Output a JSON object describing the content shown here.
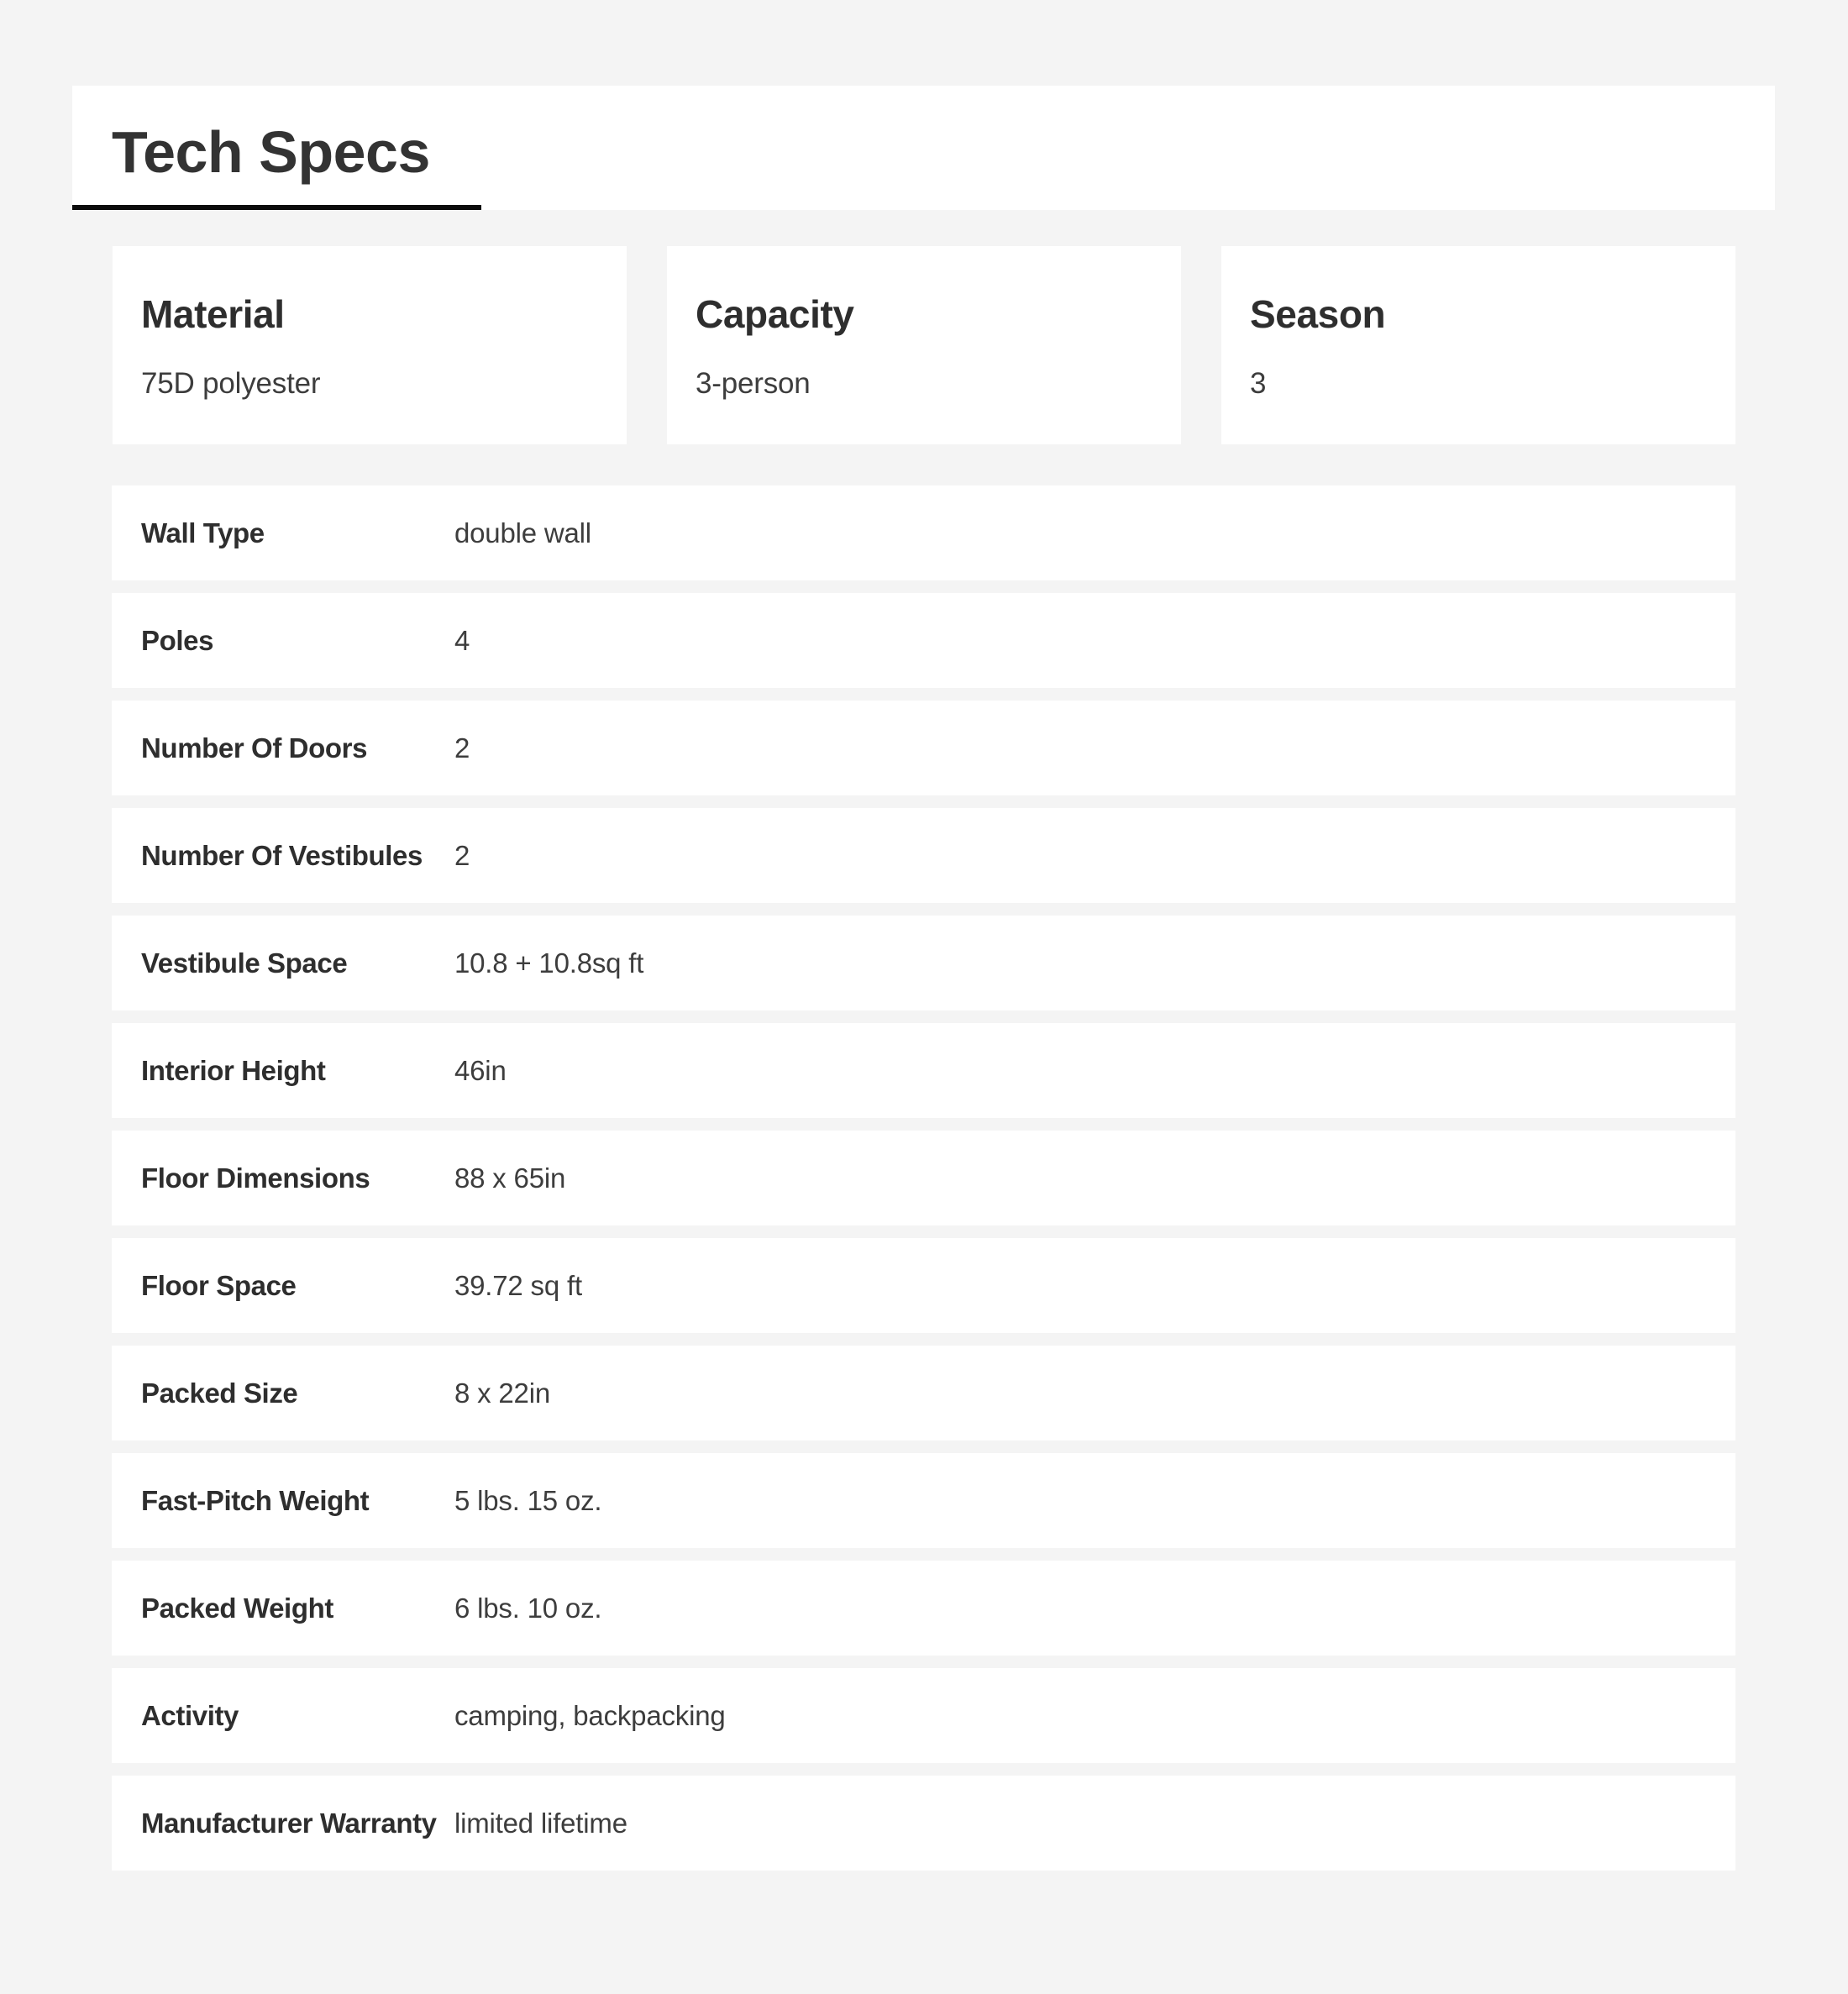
{
  "header": {
    "title": "Tech Specs"
  },
  "highlight_cards": [
    {
      "label": "Material",
      "value": "75D polyester"
    },
    {
      "label": "Capacity",
      "value": "3-person"
    },
    {
      "label": "Season",
      "value": "3"
    }
  ],
  "spec_rows": [
    {
      "label": "Wall Type",
      "value": "double wall"
    },
    {
      "label": "Poles",
      "value": "4"
    },
    {
      "label": "Number Of Doors",
      "value": "2"
    },
    {
      "label": "Number Of Vestibules",
      "value": "2"
    },
    {
      "label": "Vestibule Space",
      "value": "10.8 + 10.8sq ft"
    },
    {
      "label": "Interior Height",
      "value": "46in"
    },
    {
      "label": "Floor Dimensions",
      "value": "88 x 65in"
    },
    {
      "label": "Floor Space",
      "value": "39.72 sq ft"
    },
    {
      "label": "Packed Size",
      "value": "8 x 22in"
    },
    {
      "label": "Fast-Pitch Weight",
      "value": "5 lbs. 15 oz."
    },
    {
      "label": "Packed Weight",
      "value": "6 lbs. 10 oz."
    },
    {
      "label": "Activity",
      "value": "camping, backpacking"
    },
    {
      "label": "Manufacturer Warranty",
      "value": "limited lifetime"
    }
  ],
  "colors": {
    "page_background": "#f4f4f4",
    "panel_background": "#ffffff",
    "heading_text": "#2e2e2e",
    "value_text": "#3d3d3d",
    "accent_underline": "#0b0b0b"
  }
}
